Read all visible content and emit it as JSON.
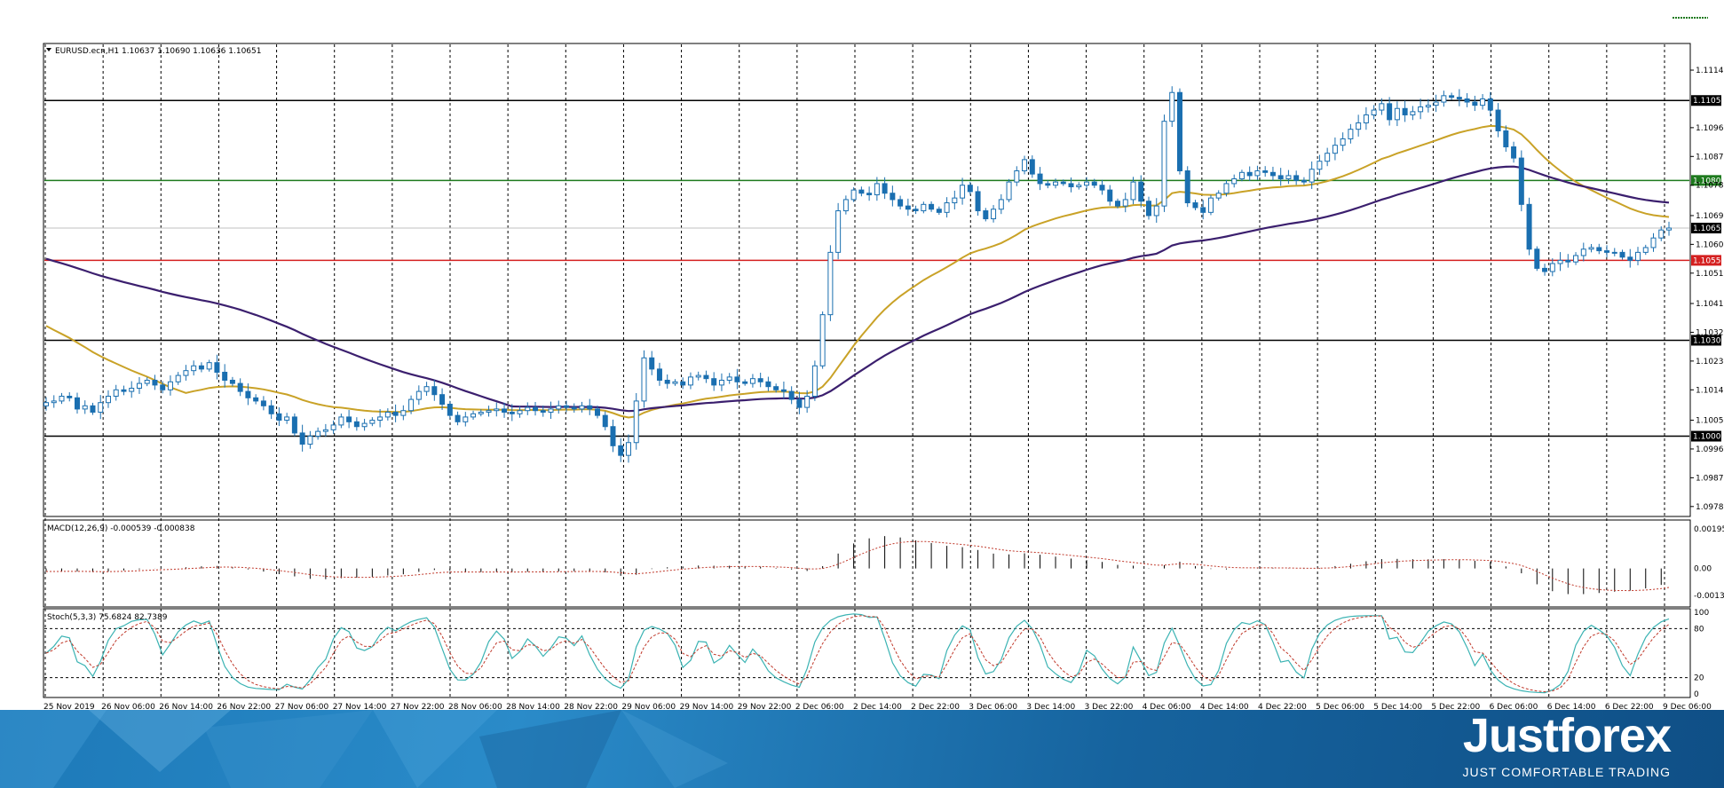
{
  "window": {
    "symbol_label": "EURUSD.ecn,H1  1.10637 1.10690 1.10636 1.10651",
    "macd_label": "MACD(12,26,9) -0.000539 -0.000838",
    "stoch_label": "Stoch(5,3,3) 75.6824 82.7389"
  },
  "brand": {
    "name": "Justforex",
    "tagline": "JUST COMFORTABLE TRADING"
  },
  "colors": {
    "candle": "#1a6fb0",
    "ma_fast": "#c9a227",
    "ma_slow": "#3b1f6e",
    "level_black": "#000000",
    "level_green": "#1e7a1e",
    "level_red": "#d42020",
    "bid_line": "#c0c0c0",
    "stoch_main": "#3bb3b3",
    "stoch_signal": "#c0392b"
  },
  "chart_data": [
    {
      "type": "candlestick",
      "title": "EURUSD.ecn,H1  1.10637 1.10690 1.10636 1.10651",
      "ylim": [
        1.0976,
        1.1122
      ],
      "y_ticks": [
        "1.11145",
        "1.11050",
        "1.10965",
        "1.10875",
        "1.10800",
        "1.10785",
        "1.10690",
        "1.10651",
        "1.10600",
        "1.10550",
        "1.10510",
        "1.10415",
        "1.10325",
        "1.10300",
        "1.10235",
        "1.10145",
        "1.10050",
        "1.10000",
        "1.09960",
        "1.09870",
        "1.09780"
      ],
      "x_ticks": [
        "25 Nov 2019",
        "26 Nov 06:00",
        "26 Nov 14:00",
        "26 Nov 22:00",
        "27 Nov 06:00",
        "27 Nov 14:00",
        "27 Nov 22:00",
        "28 Nov 06:00",
        "28 Nov 14:00",
        "28 Nov 22:00",
        "29 Nov 06:00",
        "29 Nov 14:00",
        "29 Nov 22:00",
        "2 Dec 06:00",
        "2 Dec 14:00",
        "2 Dec 22:00",
        "3 Dec 06:00",
        "3 Dec 14:00",
        "3 Dec 22:00",
        "4 Dec 06:00",
        "4 Dec 14:00",
        "4 Dec 22:00",
        "5 Dec 06:00",
        "5 Dec 14:00",
        "5 Dec 22:00",
        "6 Dec 06:00",
        "6 Dec 14:00",
        "6 Dec 22:00",
        "9 Dec 06:00"
      ],
      "levels": [
        {
          "price": 1.1105,
          "label": "1.11050",
          "color": "black"
        },
        {
          "price": 1.108,
          "label": "1.10800",
          "color": "green"
        },
        {
          "price": 1.10651,
          "label": "1.10651",
          "color": "black"
        },
        {
          "price": 1.1055,
          "label": "1.10550",
          "color": "red"
        },
        {
          "price": 1.103,
          "label": "1.10300",
          "color": "black"
        },
        {
          "price": 1.1,
          "label": "1.10000",
          "color": "black"
        }
      ],
      "series": [
        {
          "close": [
            1.10105,
            1.1011,
            1.10125,
            1.1012,
            1.10085,
            1.10095,
            1.10075,
            1.10105,
            1.10125,
            1.10145,
            1.1014,
            1.1015,
            1.10165,
            1.10175,
            1.1016,
            1.10145,
            1.1017,
            1.1019,
            1.10205,
            1.1022,
            1.1021,
            1.1023,
            1.102,
            1.10175,
            1.10165,
            1.1014,
            1.1012,
            1.1011,
            1.10095,
            1.1007,
            1.1005,
            1.1006,
            1.1001,
            1.09975,
            1.1,
            1.10015,
            1.1002,
            1.10035,
            1.1006,
            1.10045,
            1.1003,
            1.1004,
            1.1005,
            1.1006,
            1.10075,
            1.10065,
            1.1008,
            1.10115,
            1.1014,
            1.10155,
            1.1013,
            1.101,
            1.10065,
            1.10045,
            1.1006,
            1.1007,
            1.10075,
            1.1008,
            1.10085,
            1.10075,
            1.1007,
            1.1008,
            1.1009,
            1.1008,
            1.10075,
            1.10085,
            1.10095,
            1.1009,
            1.10085,
            1.10095,
            1.10085,
            1.10065,
            1.1003,
            1.0997,
            1.0994,
            1.0998,
            1.1011,
            1.10245,
            1.1021,
            1.10175,
            1.10165,
            1.1017,
            1.1016,
            1.10185,
            1.1019,
            1.1018,
            1.1016,
            1.10175,
            1.10185,
            1.1017,
            1.10165,
            1.1018,
            1.1017,
            1.10155,
            1.10145,
            1.1014,
            1.10115,
            1.1009,
            1.10125,
            1.1022,
            1.1038,
            1.10575,
            1.10705,
            1.1074,
            1.1077,
            1.1076,
            1.10755,
            1.1079,
            1.1076,
            1.1074,
            1.1072,
            1.1071,
            1.10705,
            1.10725,
            1.1071,
            1.107,
            1.1073,
            1.10745,
            1.10785,
            1.10765,
            1.10705,
            1.1068,
            1.1071,
            1.1074,
            1.10795,
            1.1083,
            1.10865,
            1.1082,
            1.1079,
            1.10785,
            1.10795,
            1.1079,
            1.1078,
            1.10785,
            1.10795,
            1.10785,
            1.1077,
            1.10735,
            1.1072,
            1.1074,
            1.10795,
            1.10735,
            1.1069,
            1.1072,
            1.10985,
            1.11075,
            1.1083,
            1.1073,
            1.10715,
            1.107,
            1.10745,
            1.1076,
            1.1079,
            1.10805,
            1.10825,
            1.10815,
            1.1083,
            1.10825,
            1.10815,
            1.10805,
            1.10815,
            1.108,
            1.10795,
            1.10835,
            1.1086,
            1.10885,
            1.1091,
            1.1093,
            1.1096,
            1.1098,
            1.11005,
            1.1102,
            1.1104,
            1.1099,
            1.11025,
            1.11005,
            1.11015,
            1.1103,
            1.11035,
            1.11045,
            1.11065,
            1.1106,
            1.11055,
            1.11045,
            1.11035,
            1.11055,
            1.1102,
            1.10955,
            1.10905,
            1.1087,
            1.10725,
            1.10585,
            1.10525,
            1.10515,
            1.1054,
            1.1055,
            1.10545,
            1.10565,
            1.10585,
            1.1059,
            1.1058,
            1.10575,
            1.10575,
            1.1056,
            1.1055,
            1.10575,
            1.1059,
            1.1062,
            1.10645,
            1.10651
          ]
        }
      ]
    },
    {
      "type": "bar",
      "title": "MACD(12,26,9) -0.000539 -0.000838",
      "y_ticks": [
        "0.00195",
        "0.00",
        "-0.00133"
      ],
      "ylim": [
        -0.0018,
        0.0022
      ]
    },
    {
      "type": "line",
      "title": "Stoch(5,3,3) 75.6824 82.7389",
      "y_ticks": [
        "100",
        "80",
        "20",
        "0"
      ],
      "ylim": [
        0,
        100
      ]
    }
  ]
}
